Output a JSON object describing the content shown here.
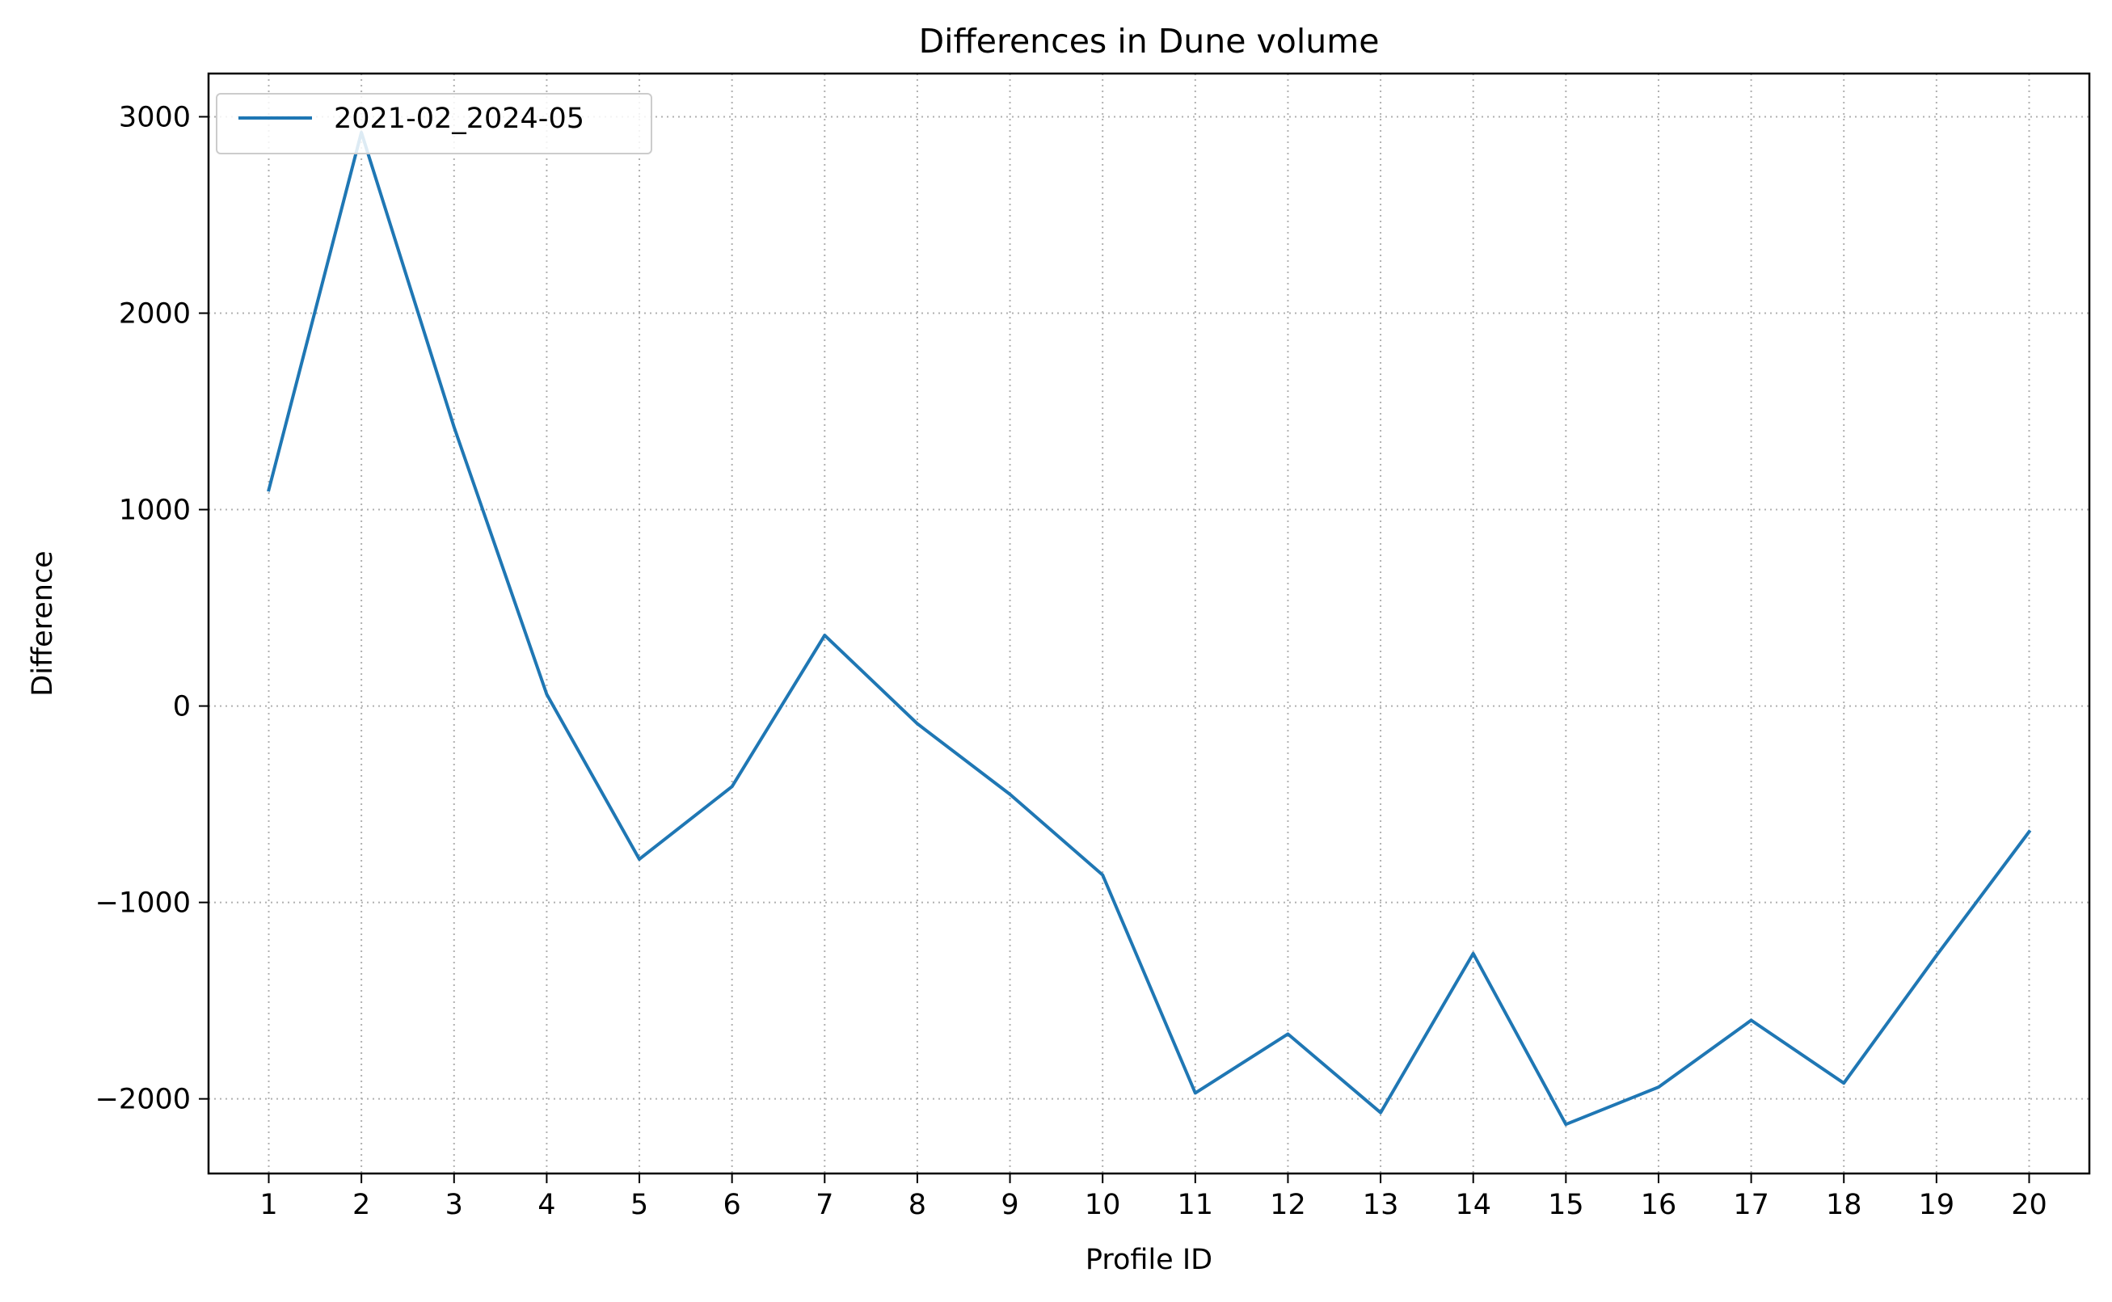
{
  "chart_data": {
    "type": "line",
    "title": "Differences in Dune volume",
    "xlabel": "Profile ID",
    "ylabel": "Difference",
    "x": [
      1,
      2,
      3,
      4,
      5,
      6,
      7,
      8,
      9,
      10,
      11,
      12,
      13,
      14,
      15,
      16,
      17,
      18,
      19,
      20
    ],
    "xticks": [
      "1",
      "2",
      "3",
      "4",
      "5",
      "6",
      "7",
      "8",
      "9",
      "10",
      "11",
      "12",
      "13",
      "14",
      "15",
      "16",
      "17",
      "18",
      "19",
      "20"
    ],
    "yticks": [
      -2000,
      -1000,
      0,
      1000,
      2000,
      3000
    ],
    "ytick_labels": [
      "−2000",
      "−1000",
      "0",
      "1000",
      "2000",
      "3000"
    ],
    "xlim": [
      0.35,
      20.65
    ],
    "ylim": [
      -2380,
      3220
    ],
    "grid": true,
    "legend_position": "top-left",
    "series": [
      {
        "name": "2021-02_2024-05",
        "color": "#1f77b4",
        "values": [
          1100,
          2920,
          1420,
          60,
          -780,
          -410,
          360,
          -90,
          -450,
          -860,
          -1970,
          -1670,
          -2070,
          -1260,
          -2130,
          -1940,
          -1600,
          -1920,
          -1270,
          -640
        ]
      }
    ]
  }
}
